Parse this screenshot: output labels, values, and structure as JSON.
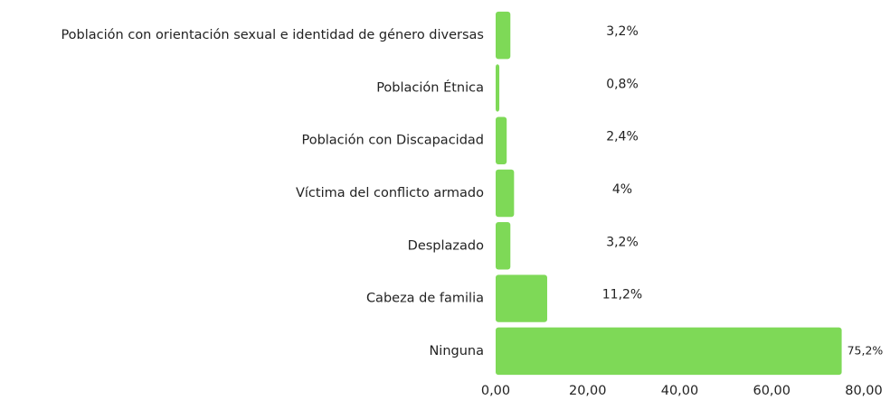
{
  "chart_data": {
    "type": "hbar",
    "categories": [
      "Población con orientación sexual e identidad de género diversas",
      "Población Étnica",
      "Población con Discapacidad",
      "Víctima del conflicto armado",
      "Desplazado",
      "Cabeza de familia",
      "Ninguna"
    ],
    "values": [
      3.2,
      0.8,
      2.4,
      4,
      3.2,
      11.2,
      75.2
    ],
    "value_labels": [
      "3,2%",
      "0,8%",
      "2,4%",
      "4%",
      "3,2%",
      "11,2%",
      "75,2%"
    ],
    "color": "#7ed957",
    "xlim": [
      0,
      80
    ],
    "xticks": [
      {
        "value": 0,
        "label": "0,00"
      },
      {
        "value": 20,
        "label": "20,00"
      },
      {
        "value": 40,
        "label": "40,00"
      },
      {
        "value": 60,
        "label": "60,00"
      },
      {
        "value": 80,
        "label": "80,00"
      }
    ]
  }
}
